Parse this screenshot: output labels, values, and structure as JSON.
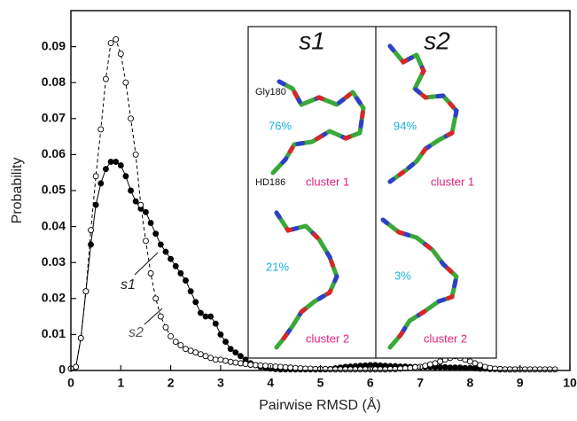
{
  "chart_data": {
    "type": "line",
    "x_label": "Pairwise RMSD (Å)",
    "y_label": "Probability",
    "xlim": [
      0,
      10
    ],
    "ylim": [
      0,
      0.1
    ],
    "xticks": [
      0,
      1,
      2,
      3,
      4,
      5,
      6,
      7,
      8,
      9,
      10
    ],
    "yticks": [
      0,
      0.01,
      0.02,
      0.03,
      0.04,
      0.05,
      0.06,
      0.07,
      0.08,
      0.09
    ],
    "x": [
      0,
      0.1,
      0.2,
      0.3,
      0.4,
      0.5,
      0.6,
      0.7,
      0.8,
      0.9,
      1,
      1.1,
      1.2,
      1.3,
      1.4,
      1.5,
      1.6,
      1.7,
      1.8,
      1.9,
      2,
      2.1,
      2.2,
      2.3,
      2.4,
      2.5,
      2.6,
      2.7,
      2.8,
      2.9,
      3,
      3.1,
      3.2,
      3.3,
      3.4,
      3.5,
      3.6,
      3.7,
      3.8,
      3.9,
      4,
      4.1,
      4.2,
      4.3,
      4.4,
      4.5,
      4.6,
      4.7,
      4.8,
      4.9,
      5,
      5.1,
      5.2,
      5.3,
      5.4,
      5.5,
      5.6,
      5.7,
      5.8,
      5.9,
      6,
      6.1,
      6.2,
      6.3,
      6.4,
      6.5,
      6.6,
      6.7,
      6.8,
      6.9,
      7,
      7.1,
      7.2,
      7.3,
      7.4,
      7.5,
      7.6,
      7.7,
      7.8,
      7.9,
      8,
      8.1,
      8.2,
      8.3,
      8.4,
      8.5,
      8.6,
      8.7,
      8.8,
      8.9,
      9,
      9.1,
      9.2,
      9.3,
      9.4,
      9.5,
      9.6,
      9.7
    ],
    "series": [
      {
        "name": "s1",
        "color": "#000000",
        "marker": "filled",
        "dashed": false,
        "values": [
          0.0005,
          0.001,
          0.009,
          0.022,
          0.035,
          0.046,
          0.052,
          0.056,
          0.058,
          0.058,
          0.057,
          0.054,
          0.05,
          0.047,
          0.045,
          0.044,
          0.041,
          0.038,
          0.035,
          0.033,
          0.031,
          0.029,
          0.027,
          0.025,
          0.022,
          0.019,
          0.016,
          0.015,
          0.015,
          0.013,
          0.01,
          0.008,
          0.006,
          0.005,
          0.004,
          0.003,
          0.002,
          0.0015,
          0.001,
          0.0008,
          0.0005,
          0.0004,
          0.0003,
          0.0003,
          0.0003,
          0.0003,
          0.0003,
          0.0003,
          0.0003,
          0.0003,
          0.0003,
          0.0003,
          0.0004,
          0.0006,
          0.0008,
          0.001,
          0.0011,
          0.0012,
          0.0013,
          0.0014,
          0.0015,
          0.0015,
          0.0014,
          0.0013,
          0.0012,
          0.0012,
          0.0011,
          0.0011,
          0.001,
          0.001,
          0.001,
          0.001,
          0.001,
          0.0009,
          0.0009,
          0.0009,
          0.0008,
          0.0008,
          0.0008,
          0.0007,
          0.0007,
          0.0006,
          0.0005,
          0.0005,
          0.0004,
          0.0004,
          0.0003,
          0.0003,
          0.0003,
          0.0003,
          null,
          null,
          null,
          null,
          null,
          null,
          null,
          null
        ]
      },
      {
        "name": "s2",
        "color": "#000000",
        "marker": "open",
        "dashed": true,
        "values": [
          0.0005,
          0.001,
          0.009,
          0.022,
          0.039,
          0.054,
          0.067,
          0.081,
          0.091,
          0.092,
          0.088,
          0.08,
          0.07,
          0.06,
          0.046,
          0.036,
          0.027,
          0.02,
          0.015,
          0.012,
          0.0095,
          0.008,
          0.007,
          0.006,
          0.0055,
          0.005,
          0.0045,
          0.004,
          0.0035,
          0.003,
          0.003,
          0.0027,
          0.0024,
          0.0022,
          0.002,
          0.0018,
          0.0016,
          0.0015,
          0.0014,
          0.0013,
          0.0012,
          0.0011,
          0.001,
          0.0009,
          0.0008,
          0.0007,
          0.0006,
          0.0005,
          0.0005,
          0.0004,
          0.0004,
          0.0004,
          0.0003,
          0.0003,
          0.0003,
          0.0003,
          0.0003,
          0.0003,
          0.0003,
          0.0003,
          0.0003,
          0.0003,
          0.0003,
          0.0003,
          0.0004,
          0.0004,
          0.0005,
          0.0006,
          0.0007,
          0.0009,
          0.001,
          0.0013,
          0.0017,
          0.002,
          0.0025,
          0.003,
          0.0035,
          0.004,
          0.0035,
          0.003,
          0.0025,
          0.002,
          0.0015,
          0.001,
          0.0007,
          0.0005,
          0.0004,
          0.0003,
          0.0003,
          0.0003,
          0.0003,
          0.0003,
          0.0003,
          0.0003,
          0.0003,
          0.0003,
          0.0003,
          0.0003
        ]
      }
    ],
    "inset": {
      "headers": [
        "s1",
        "s2"
      ],
      "residues": [
        "Gly180",
        "HD186"
      ],
      "percents": [
        "76%",
        "21%",
        "94%",
        "3%"
      ],
      "clusters": [
        "cluster 1",
        "cluster 2",
        "cluster 1",
        "cluster 2"
      ]
    }
  }
}
